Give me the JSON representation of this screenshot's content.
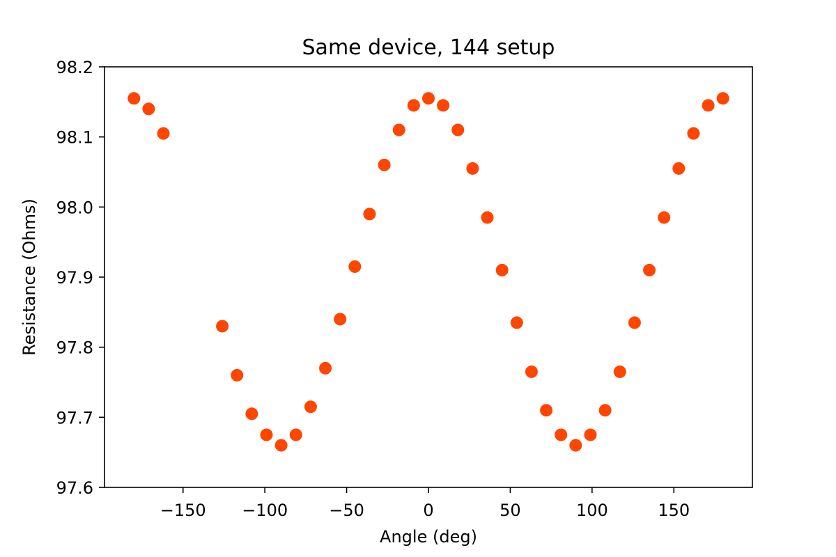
{
  "chart_data": {
    "type": "scatter",
    "title": "Same device, 144 setup",
    "xlabel": "Angle (deg)",
    "ylabel": "Resistance (Ohms)",
    "xlim": [
      -198,
      198
    ],
    "ylim": [
      97.6,
      98.2
    ],
    "xticks": [
      -150,
      -100,
      -50,
      0,
      50,
      100,
      150
    ],
    "xtick_labels": [
      "−150",
      "−100",
      "−50",
      "0",
      "50",
      "100",
      "150"
    ],
    "yticks": [
      97.6,
      97.7,
      97.8,
      97.9,
      98.0,
      98.1,
      98.2
    ],
    "ytick_labels": [
      "97.6",
      "97.7",
      "97.8",
      "97.9",
      "98.0",
      "98.1",
      "98.2"
    ],
    "grid": false,
    "marker_color": "#ff4500",
    "series": [
      {
        "x": [
          -180,
          -171,
          -162,
          -126,
          -117,
          -108,
          -99,
          -90,
          -81,
          -72,
          -63,
          -54,
          -45,
          -36,
          -27,
          -18,
          -9,
          0,
          9,
          18,
          27,
          36,
          45,
          54,
          63,
          72,
          81,
          90,
          99,
          108,
          117,
          126,
          135,
          144,
          153,
          162,
          171,
          180
        ],
        "y": [
          98.155,
          98.14,
          98.105,
          97.83,
          97.76,
          97.705,
          97.675,
          97.66,
          97.675,
          97.715,
          97.77,
          97.84,
          97.915,
          97.99,
          98.06,
          98.11,
          98.145,
          98.155,
          98.145,
          98.11,
          98.055,
          97.985,
          97.91,
          97.835,
          97.765,
          97.71,
          97.675,
          97.66,
          97.675,
          97.71,
          97.765,
          97.835,
          97.91,
          97.985,
          98.055,
          98.105,
          98.145,
          98.155
        ]
      }
    ]
  }
}
